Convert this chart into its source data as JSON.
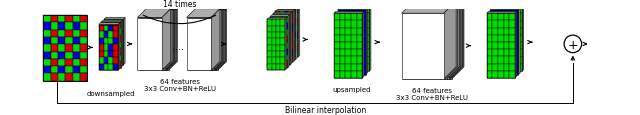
{
  "bg_color": "#ffffff",
  "label_downsampled": "downsampled",
  "label_64feat_1": "64 features\n3x3 Conv+BN+ReLU",
  "label_14times": "14 times",
  "label_upsampled": "upsampled",
  "label_64feat_2": "64 features\n3x3 Conv+BN+ReLU",
  "label_bilinear": "Bilinear interpolation",
  "green": "#00dd00",
  "red": "#dd0000",
  "blue": "#0000dd",
  "black": "#000000",
  "white": "#ffffff",
  "gray_side": "#888888",
  "gray_top": "#aaaaaa",
  "gray_dark": "#555555"
}
